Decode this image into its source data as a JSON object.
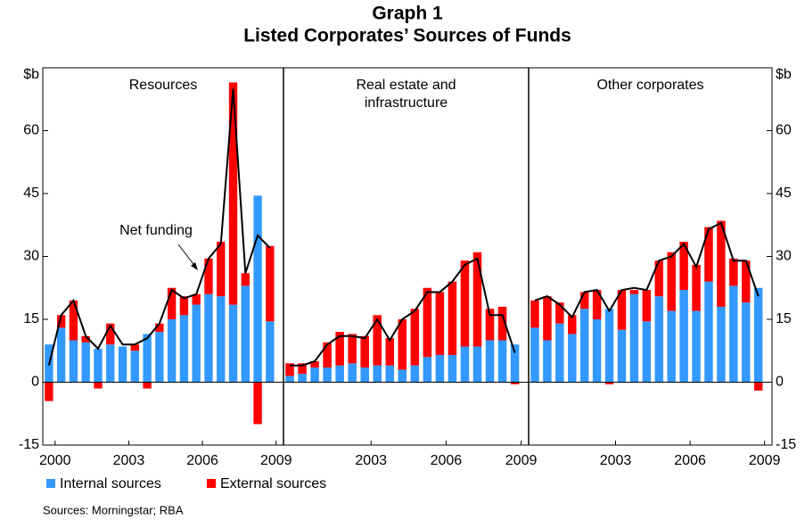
{
  "title": "Graph 1",
  "subtitle": "Listed Corporates’ Sources of Funds",
  "source": "Sources: Morningstar; RBA",
  "chart_data": [
    {
      "type": "bar",
      "title": "Resources",
      "ylabel": "$b",
      "yaxis": "left",
      "annotation": "Net funding",
      "x": [
        1999.75,
        2000.25,
        2000.75,
        2001.25,
        2001.75,
        2002.25,
        2002.75,
        2003.25,
        2003.75,
        2004.25,
        2004.75,
        2005.25,
        2005.75,
        2006.25,
        2006.75,
        2007.25,
        2007.75,
        2008.25,
        2008.75
      ],
      "xlim": [
        1999.5,
        2009.3
      ],
      "xticks": [
        2000,
        2003,
        2006,
        2009
      ],
      "ylim": [
        -15,
        75
      ],
      "yticks": [
        -15,
        0,
        15,
        30,
        45,
        60
      ],
      "grid": false,
      "series": [
        {
          "name": "Internal sources",
          "color": "#3399ff",
          "values": [
            9,
            13,
            10,
            9.5,
            8,
            9,
            8.5,
            7.5,
            11.5,
            12,
            15,
            16,
            18.5,
            21,
            20.5,
            18.5,
            23,
            44.5,
            14.5
          ]
        },
        {
          "name": "External sources",
          "color": "#ff0000",
          "values": [
            -4.5,
            3,
            9.5,
            1.5,
            -1.5,
            5,
            0,
            1.5,
            -1.5,
            2,
            7.5,
            4.5,
            2.5,
            8.5,
            13,
            53,
            3,
            -10,
            18
          ]
        },
        {
          "type": "line",
          "color": "#000000",
          "values": [
            4,
            16,
            19.5,
            11,
            8,
            13.5,
            9,
            9,
            10.5,
            14,
            22,
            20,
            21,
            29.5,
            33,
            70,
            26,
            35,
            32
          ]
        }
      ]
    },
    {
      "type": "bar",
      "title": "Real estate and\ninfrastructure",
      "x": [
        1999.75,
        2000.25,
        2000.75,
        2001.25,
        2001.75,
        2002.25,
        2002.75,
        2003.25,
        2003.75,
        2004.25,
        2004.75,
        2005.25,
        2005.75,
        2006.25,
        2006.75,
        2007.25,
        2007.75,
        2008.25,
        2008.75
      ],
      "xlim": [
        1999.5,
        2009.3
      ],
      "xticks": [
        2003,
        2006,
        2009
      ],
      "ylim": [
        -15,
        75
      ],
      "yticks": [
        -15,
        0,
        15,
        30,
        45,
        60
      ],
      "grid": false,
      "series": [
        {
          "color": "#3399ff",
          "values": [
            1.5,
            2,
            3.5,
            3.5,
            4,
            4.5,
            3.5,
            4,
            4,
            3,
            4,
            6,
            6.5,
            6.5,
            8.5,
            8.5,
            10,
            10,
            9
          ]
        },
        {
          "color": "#ff0000",
          "values": [
            3,
            2.5,
            1.5,
            6,
            8,
            7,
            7.5,
            12,
            6.5,
            12,
            13.5,
            16.5,
            15,
            17.5,
            20.5,
            22.5,
            7.5,
            8,
            -0.5
          ]
        },
        {
          "type": "line",
          "color": "#000000",
          "values": [
            4,
            4,
            5,
            9,
            11,
            11,
            10.5,
            15,
            10,
            15,
            17,
            21.5,
            21.5,
            24,
            28,
            29.5,
            16,
            16,
            7
          ]
        }
      ]
    },
    {
      "type": "bar",
      "title": "Other corporates",
      "ylabel": "$b",
      "yaxis": "right",
      "x": [
        1999.75,
        2000.25,
        2000.75,
        2001.25,
        2001.75,
        2002.25,
        2002.75,
        2003.25,
        2003.75,
        2004.25,
        2004.75,
        2005.25,
        2005.75,
        2006.25,
        2006.75,
        2007.25,
        2007.75,
        2008.25,
        2008.75
      ],
      "xlim": [
        1999.5,
        2009.3
      ],
      "xticks": [
        2003,
        2006,
        2009
      ],
      "ylim": [
        -15,
        75
      ],
      "yticks": [
        -15,
        0,
        15,
        30,
        45,
        60
      ],
      "grid": false,
      "series": [
        {
          "color": "#3399ff",
          "values": [
            13,
            10,
            14,
            11.5,
            17.5,
            15,
            17.5,
            12.5,
            21,
            14.5,
            20.5,
            17,
            22,
            17,
            24,
            18,
            23,
            19,
            22.5
          ]
        },
        {
          "color": "#ff0000",
          "values": [
            6.5,
            10.5,
            5,
            4.5,
            4,
            7,
            -0.5,
            9.5,
            1,
            7.5,
            8.5,
            14,
            11.5,
            11,
            13,
            20.5,
            6.5,
            10,
            -2
          ]
        },
        {
          "type": "line",
          "color": "#000000",
          "values": [
            19.5,
            20.5,
            18.5,
            15.5,
            21.5,
            22,
            17,
            22,
            22.5,
            22,
            29,
            30,
            33,
            27.5,
            36.5,
            38,
            29,
            29,
            20.5
          ]
        }
      ]
    }
  ]
}
